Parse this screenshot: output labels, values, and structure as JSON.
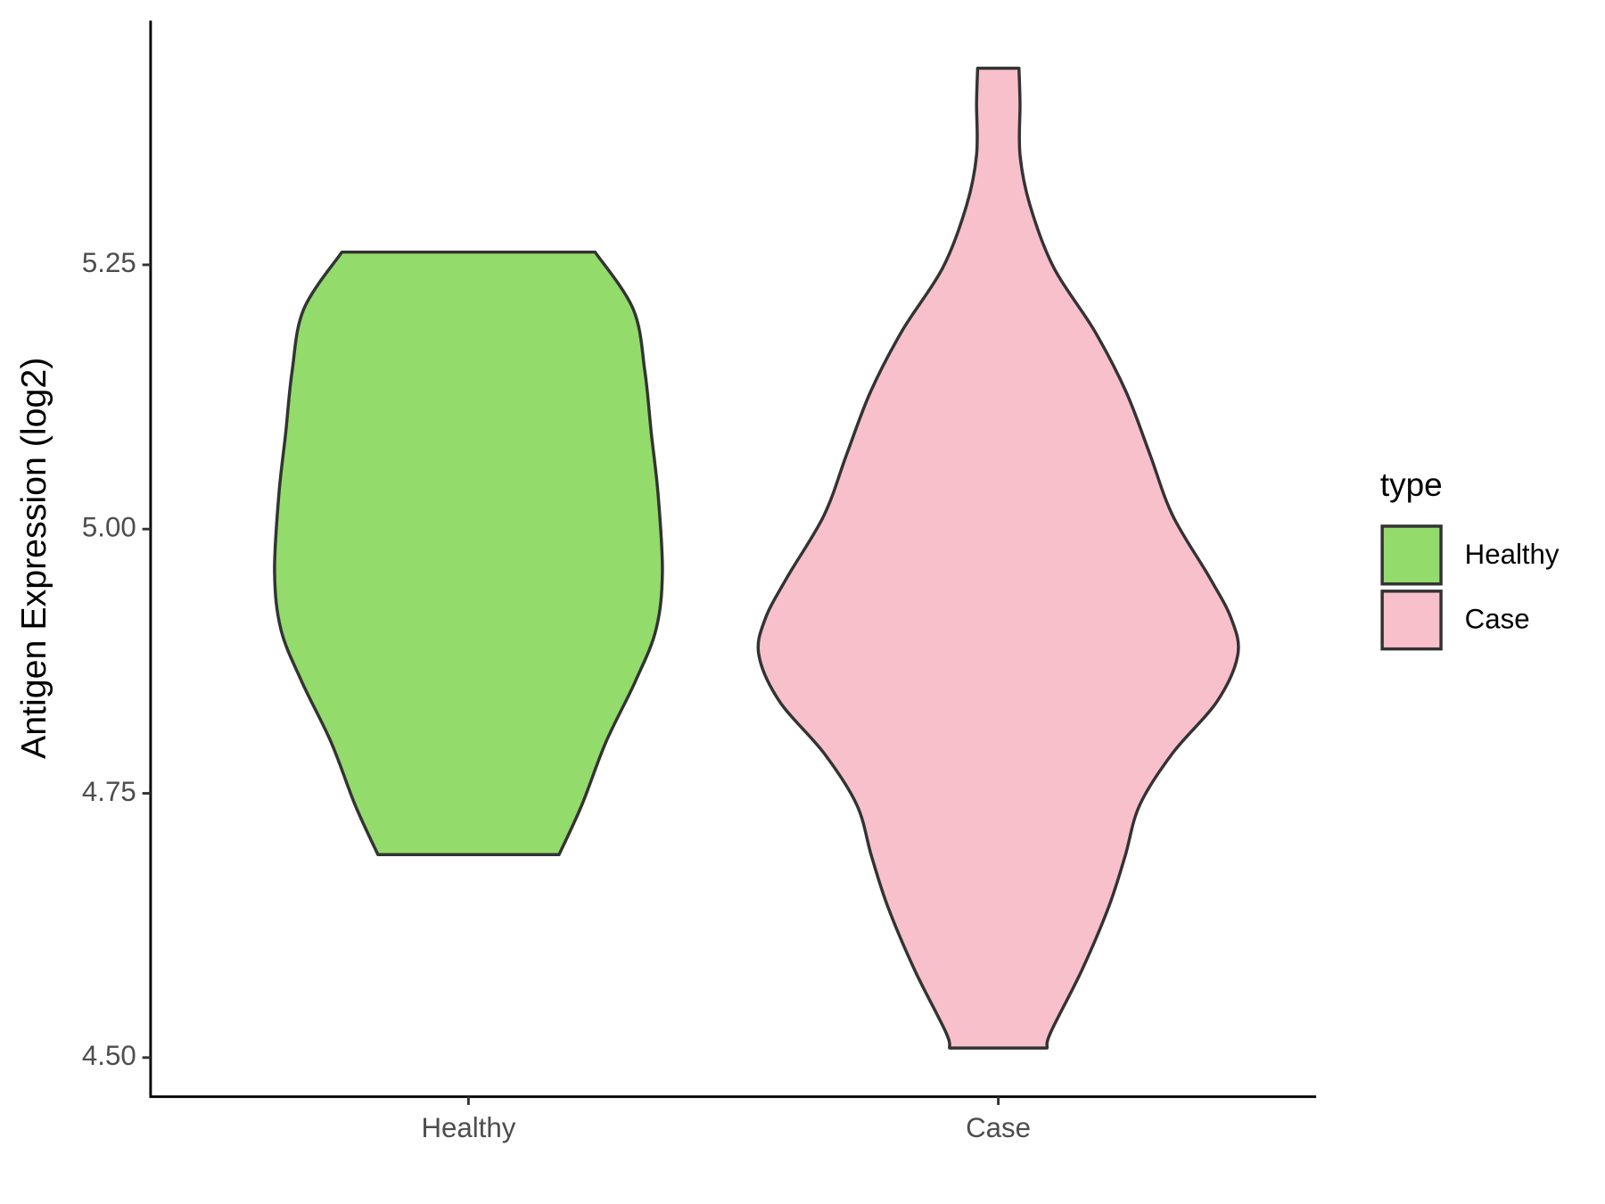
{
  "chart_data": {
    "type": "violin",
    "y_label": "Antigen Expression (log2)",
    "legend_title": "type",
    "legend": "right",
    "categories": [
      "Healthy",
      "Case"
    ],
    "series": [
      {
        "name": "Healthy",
        "color": "#93db6a",
        "y": [
          5.262,
          5.208,
          5.149,
          5.091,
          5.032,
          4.959,
          4.905,
          4.856,
          4.798,
          4.739,
          4.692
        ],
        "widths": [
          0.239,
          0.311,
          0.333,
          0.345,
          0.358,
          0.366,
          0.354,
          0.315,
          0.259,
          0.214,
          0.171
        ]
      },
      {
        "name": "Case",
        "color": "#f8c0cb",
        "y": [
          5.436,
          5.403,
          5.354,
          5.306,
          5.247,
          5.188,
          5.13,
          5.071,
          5.013,
          4.954,
          4.915,
          4.881,
          4.837,
          4.788,
          4.739,
          4.69,
          4.642,
          4.583,
          4.524,
          4.509
        ],
        "widths": [
          0.039,
          0.041,
          0.041,
          0.06,
          0.105,
          0.181,
          0.241,
          0.286,
          0.329,
          0.399,
          0.44,
          0.452,
          0.413,
          0.329,
          0.267,
          0.239,
          0.208,
          0.158,
          0.099,
          0.092
        ]
      }
    ],
    "ylim": [
      4.463,
      5.481
    ],
    "yticks": [
      {
        "value": 4.5,
        "label": "4.50"
      },
      4.75,
      {
        "value": 5,
        "label": "5.00"
      },
      5.25
    ]
  }
}
